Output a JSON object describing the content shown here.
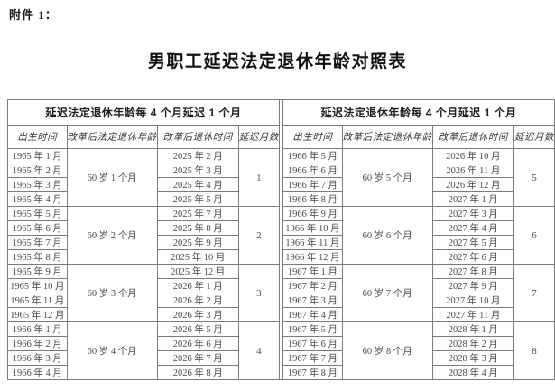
{
  "page": {
    "attachment_label": "附件 1：",
    "title": "男职工延迟法定退休年龄对照表"
  },
  "table": {
    "span_header": "延迟法定退休年龄每 4 个月延迟 1 个月",
    "columns": [
      "出生时间",
      "改革后法定退休年龄",
      "改革后退休时间",
      "延迟月数"
    ],
    "halves": [
      {
        "groups": [
          {
            "age": "60 岁 1 个月",
            "delay": "1",
            "rows": [
              [
                "1965 年 1 月",
                "2025 年 2 月"
              ],
              [
                "1965 年 2 月",
                "2025 年 3 月"
              ],
              [
                "1965 年 3 月",
                "2025 年 4 月"
              ],
              [
                "1965 年 4 月",
                "2025 年 5 月"
              ]
            ]
          },
          {
            "age": "60 岁 2 个月",
            "delay": "2",
            "rows": [
              [
                "1965 年 5 月",
                "2025 年 7 月"
              ],
              [
                "1965 年 6 月",
                "2025 年 8 月"
              ],
              [
                "1965 年 7 月",
                "2025 年 9 月"
              ],
              [
                "1965 年 8 月",
                "2025 年 10 月"
              ]
            ]
          },
          {
            "age": "60 岁 3 个月",
            "delay": "3",
            "rows": [
              [
                "1965 年 9 月",
                "2025 年 12 月"
              ],
              [
                "1965 年 10 月",
                "2026 年 1 月"
              ],
              [
                "1965 年 11 月",
                "2026 年 2 月"
              ],
              [
                "1965 年 12 月",
                "2026 年 3 月"
              ]
            ]
          },
          {
            "age": "60 岁 4 个月",
            "delay": "4",
            "rows": [
              [
                "1966 年 1 月",
                "2026 年 5 月"
              ],
              [
                "1966 年 2 月",
                "2026 年 6 月"
              ],
              [
                "1966 年 3 月",
                "2026 年 7 月"
              ],
              [
                "1966 年 4 月",
                "2026 年 8 月"
              ]
            ]
          }
        ]
      },
      {
        "groups": [
          {
            "age": "60 岁 5 个月",
            "delay": "5",
            "rows": [
              [
                "1966 年 5 月",
                "2026 年 10 月"
              ],
              [
                "1966 年 6 月",
                "2026 年 11 月"
              ],
              [
                "1966 年 7 月",
                "2026 年 12 月"
              ],
              [
                "1966 年 8 月",
                "2027 年 1 月"
              ]
            ]
          },
          {
            "age": "60 岁 6 个月",
            "delay": "6",
            "rows": [
              [
                "1966 年 9 月",
                "2027 年 3 月"
              ],
              [
                "1966 年 10 月",
                "2027 年 4 月"
              ],
              [
                "1966 年 11 月",
                "2027 年 5 月"
              ],
              [
                "1966 年 12 月",
                "2027 年 6 月"
              ]
            ]
          },
          {
            "age": "60 岁 7 个月",
            "delay": "7",
            "rows": [
              [
                "1967 年 1 月",
                "2027 年 8 月"
              ],
              [
                "1967 年 2 月",
                "2027 年 9 月"
              ],
              [
                "1967 年 3 月",
                "2027 年 10 月"
              ],
              [
                "1967 年 4 月",
                "2027 年 11 月"
              ]
            ]
          },
          {
            "age": "60 岁 8 个月",
            "delay": "8",
            "rows": [
              [
                "1967 年 5 月",
                "2028 年 1 月"
              ],
              [
                "1967 年 6 月",
                "2028 年 2 月"
              ],
              [
                "1967 年 7 月",
                "2028 年 3 月"
              ],
              [
                "1967 年 8 月",
                "2028 年 4 月"
              ]
            ]
          }
        ]
      }
    ]
  }
}
